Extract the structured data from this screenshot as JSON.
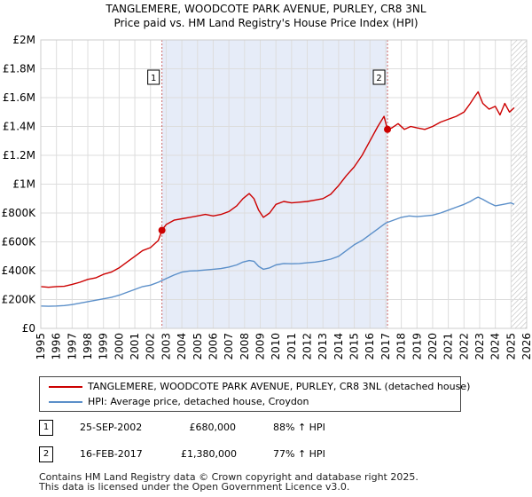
{
  "chart_data": {
    "type": "line",
    "title": "TANGLEMERE, WOODCOTE PARK AVENUE, PURLEY, CR8 3NL",
    "subtitle": "Price paid vs. HM Land Registry's House Price Index (HPI)",
    "xlim": [
      1995,
      2026
    ],
    "ylim": [
      0,
      2000000
    ],
    "x_ticks": [
      "1995",
      "1996",
      "1997",
      "1998",
      "1999",
      "2000",
      "2001",
      "2002",
      "2003",
      "2004",
      "2005",
      "2006",
      "2007",
      "2008",
      "2009",
      "2010",
      "2011",
      "2012",
      "2013",
      "2014",
      "2015",
      "2016",
      "2017",
      "2018",
      "2019",
      "2020",
      "2021",
      "2022",
      "2023",
      "2024",
      "2025",
      "2026"
    ],
    "y_ticks": [
      {
        "value": 0,
        "label": "£0"
      },
      {
        "value": 200000,
        "label": "£200K"
      },
      {
        "value": 400000,
        "label": "£400K"
      },
      {
        "value": 600000,
        "label": "£600K"
      },
      {
        "value": 800000,
        "label": "£800K"
      },
      {
        "value": 1000000,
        "label": "£1M"
      },
      {
        "value": 1200000,
        "label": "£1.2M"
      },
      {
        "value": 1400000,
        "label": "£1.4M"
      },
      {
        "value": 1600000,
        "label": "£1.6M"
      },
      {
        "value": 1800000,
        "label": "£1.8M"
      },
      {
        "value": 2000000,
        "label": "£2M"
      }
    ],
    "grid": true,
    "shaded_range": [
      2002.73,
      2017.12
    ],
    "future_hatch_start": 2025.0,
    "series": [
      {
        "name": "TANGLEMERE, WOODCOTE PARK AVENUE, PURLEY, CR8 3NL (detached house)",
        "color": "#cc0000",
        "x": [
          1995.0,
          1995.5,
          1996.0,
          1996.5,
          1997.0,
          1997.5,
          1998.0,
          1998.5,
          1999.0,
          1999.5,
          2000.0,
          2000.5,
          2001.0,
          2001.5,
          2002.0,
          2002.5,
          2002.73,
          2003.0,
          2003.5,
          2004.0,
          2004.5,
          2005.0,
          2005.5,
          2006.0,
          2006.5,
          2007.0,
          2007.5,
          2007.9,
          2008.3,
          2008.6,
          2008.9,
          2009.2,
          2009.6,
          2010.0,
          2010.5,
          2011.0,
          2011.5,
          2012.0,
          2012.5,
          2013.0,
          2013.5,
          2014.0,
          2014.5,
          2015.0,
          2015.5,
          2016.0,
          2016.5,
          2016.9,
          2017.12,
          2017.4,
          2017.8,
          2018.2,
          2018.6,
          2019.0,
          2019.5,
          2020.0,
          2020.5,
          2021.0,
          2021.5,
          2022.0,
          2022.4,
          2022.7,
          2022.9,
          2023.2,
          2023.6,
          2024.0,
          2024.3,
          2024.6,
          2024.9,
          2025.2
        ],
        "values": [
          290000,
          285000,
          290000,
          292000,
          305000,
          320000,
          340000,
          350000,
          375000,
          390000,
          420000,
          460000,
          500000,
          540000,
          560000,
          610000,
          680000,
          720000,
          750000,
          760000,
          770000,
          780000,
          790000,
          780000,
          790000,
          810000,
          850000,
          900000,
          935000,
          900000,
          820000,
          770000,
          800000,
          860000,
          880000,
          870000,
          875000,
          880000,
          890000,
          900000,
          930000,
          990000,
          1060000,
          1120000,
          1200000,
          1300000,
          1400000,
          1470000,
          1380000,
          1390000,
          1420000,
          1380000,
          1400000,
          1390000,
          1380000,
          1400000,
          1430000,
          1450000,
          1470000,
          1500000,
          1560000,
          1610000,
          1640000,
          1560000,
          1520000,
          1540000,
          1480000,
          1560000,
          1500000,
          1530000
        ]
      },
      {
        "name": "HPI: Average price, detached house, Croydon",
        "color": "#5b8fc9",
        "x": [
          1995.0,
          1995.5,
          1996.0,
          1996.5,
          1997.0,
          1997.5,
          1998.0,
          1998.5,
          1999.0,
          1999.5,
          2000.0,
          2000.5,
          2001.0,
          2001.5,
          2002.0,
          2002.5,
          2003.0,
          2003.5,
          2004.0,
          2004.5,
          2005.0,
          2005.5,
          2006.0,
          2006.5,
          2007.0,
          2007.5,
          2007.9,
          2008.3,
          2008.6,
          2008.9,
          2009.2,
          2009.6,
          2010.0,
          2010.5,
          2011.0,
          2011.5,
          2012.0,
          2012.5,
          2013.0,
          2013.5,
          2014.0,
          2014.5,
          2015.0,
          2015.5,
          2016.0,
          2016.5,
          2017.0,
          2017.5,
          2018.0,
          2018.5,
          2019.0,
          2019.5,
          2020.0,
          2020.5,
          2021.0,
          2021.5,
          2022.0,
          2022.4,
          2022.7,
          2022.9,
          2023.2,
          2023.6,
          2024.0,
          2024.5,
          2025.0,
          2025.2
        ],
        "values": [
          155000,
          153000,
          155000,
          158000,
          165000,
          175000,
          185000,
          195000,
          205000,
          215000,
          230000,
          250000,
          270000,
          290000,
          300000,
          320000,
          345000,
          370000,
          390000,
          398000,
          400000,
          405000,
          410000,
          415000,
          425000,
          440000,
          460000,
          470000,
          465000,
          430000,
          410000,
          420000,
          440000,
          450000,
          448000,
          450000,
          455000,
          460000,
          468000,
          480000,
          500000,
          540000,
          580000,
          610000,
          650000,
          690000,
          730000,
          750000,
          770000,
          780000,
          775000,
          780000,
          785000,
          800000,
          820000,
          840000,
          860000,
          880000,
          900000,
          910000,
          895000,
          870000,
          850000,
          860000,
          870000,
          860000
        ]
      }
    ],
    "sales": [
      {
        "label": "1",
        "x": 2002.73,
        "value": 680000
      },
      {
        "label": "2",
        "x": 2017.12,
        "value": 1380000
      }
    ]
  },
  "legend": {
    "items": [
      {
        "label": "TANGLEMERE, WOODCOTE PARK AVENUE, PURLEY, CR8 3NL (detached house)",
        "color": "#cc0000"
      },
      {
        "label": "HPI: Average price, detached house, Croydon",
        "color": "#5b8fc9"
      }
    ]
  },
  "transactions": [
    {
      "num": "1",
      "date": "25-SEP-2002",
      "price": "£680,000",
      "hpi": "88% ↑ HPI"
    },
    {
      "num": "2",
      "date": "16-FEB-2017",
      "price": "£1,380,000",
      "hpi": "77% ↑ HPI"
    }
  ],
  "footer": {
    "line1": "Contains HM Land Registry data © Crown copyright and database right 2025.",
    "line2": "This data is licensed under the Open Government Licence v3.0."
  }
}
